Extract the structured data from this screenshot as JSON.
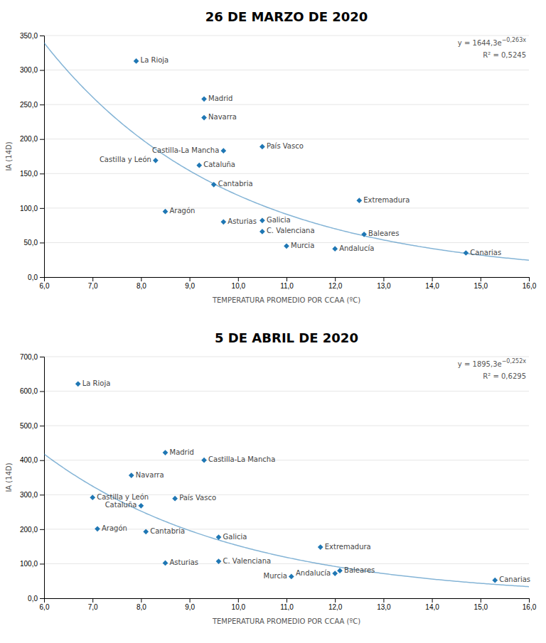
{
  "chart_data": [
    {
      "type": "scatter",
      "title": "26 DE MARZO DE 2020",
      "x_label": "TEMPERATURA  PROMEDIO POR CCAA (ºC)",
      "y_label": "IA (14D)",
      "labels": [
        "La Rioja",
        "Madrid",
        "Navarra",
        "País Vasco",
        "Castilla-La Mancha",
        "Castilla y León",
        "Cataluña",
        "Cantabria",
        "Extremadura",
        "Aragón",
        "Asturias",
        "Galicia",
        "C. Valenciana",
        "Baleares",
        "Murcia",
        "Andalucía",
        "Canarias"
      ],
      "x": [
        7.9,
        9.3,
        9.3,
        10.5,
        9.7,
        8.3,
        9.2,
        9.5,
        12.5,
        8.5,
        9.7,
        10.5,
        10.5,
        12.6,
        11.0,
        12.0,
        14.7
      ],
      "values": [
        313.0,
        258.0,
        231.0,
        189.0,
        183.0,
        169.0,
        162.0,
        134.0,
        111.0,
        95.0,
        80.0,
        82.0,
        66.0,
        62.0,
        45.0,
        41.0,
        35.0
      ],
      "marker": "diamond",
      "trend": {
        "a": 1644.3,
        "b": -0.263
      },
      "annotations": [
        {
          "text": "y = 1644,3e",
          "superscript": "−0,263x"
        },
        {
          "text": "R² = 0,5245"
        }
      ],
      "xlim": [
        6.0,
        16.0
      ],
      "ylim": [
        0.0,
        350.0
      ],
      "xticks": [
        {
          "value": 6,
          "label": "6,0"
        },
        {
          "value": 7,
          "label": "7,0"
        },
        {
          "value": 8,
          "label": "8,0"
        },
        {
          "value": 9,
          "label": "9,0"
        },
        {
          "value": 10,
          "label": "10,0"
        },
        {
          "value": 11,
          "label": "11,0"
        },
        {
          "value": 12,
          "label": "12,0"
        },
        {
          "value": 13,
          "label": "13,0"
        },
        {
          "value": 14,
          "label": "14,0"
        },
        {
          "value": 15,
          "label": "15,0"
        },
        {
          "value": 16,
          "label": "16,0"
        }
      ],
      "yticks": [
        {
          "value": 0,
          "label": "0,0"
        },
        {
          "value": 50,
          "label": "50,0"
        },
        {
          "value": 100,
          "label": "100,0"
        },
        {
          "value": 150,
          "label": "150,0"
        },
        {
          "value": 200,
          "label": "200,0"
        },
        {
          "value": 250,
          "label": "250,0"
        },
        {
          "value": 300,
          "label": "300,0"
        },
        {
          "value": 350,
          "label": "350,0"
        }
      ],
      "grid": true
    },
    {
      "type": "scatter",
      "title": "5 DE ABRIL DE 2020",
      "x_label": "TEMPERATURA  PROMEDIO POR CCAA (ºC)",
      "y_label": "IA (14D)",
      "labels": [
        "La Rioja",
        "Madrid",
        "Castilla-La Mancha",
        "Navarra",
        "Castilla y León",
        "País Vasco",
        "Cataluña",
        "Aragón",
        "Cantabria",
        "Galicia",
        "Extremadura",
        "Asturias",
        "C. Valenciana",
        "Baleares",
        "Andalucía",
        "Murcia",
        "Canarias"
      ],
      "x": [
        6.7,
        8.5,
        9.3,
        7.8,
        7.0,
        8.7,
        8.0,
        7.1,
        8.1,
        9.6,
        11.7,
        8.5,
        9.6,
        12.1,
        12.0,
        11.1,
        15.3
      ],
      "values": [
        621.0,
        422.0,
        400.0,
        356.0,
        292.0,
        289.0,
        268.0,
        201.0,
        193.0,
        177.0,
        148.0,
        102.0,
        107.0,
        80.0,
        72.0,
        63.0,
        52.0
      ],
      "marker": "diamond",
      "trend": {
        "a": 1895.3,
        "b": -0.252
      },
      "annotations": [
        {
          "text": "y = 1895,3e",
          "superscript": "−0,252x"
        },
        {
          "text": "R² = 0,6295"
        }
      ],
      "xlim": [
        6.0,
        16.0
      ],
      "ylim": [
        0.0,
        700.0
      ],
      "xticks": [
        {
          "value": 6,
          "label": "6,0"
        },
        {
          "value": 7,
          "label": "7,0"
        },
        {
          "value": 8,
          "label": "8,0"
        },
        {
          "value": 9,
          "label": "9,0"
        },
        {
          "value": 10,
          "label": "10,0"
        },
        {
          "value": 11,
          "label": "11,0"
        },
        {
          "value": 12,
          "label": "12,0"
        },
        {
          "value": 13,
          "label": "13,0"
        },
        {
          "value": 14,
          "label": "14,0"
        },
        {
          "value": 15,
          "label": "15,0"
        },
        {
          "value": 16,
          "label": "16,0"
        }
      ],
      "yticks": [
        {
          "value": 0,
          "label": "0,0"
        },
        {
          "value": 100,
          "label": "100,0"
        },
        {
          "value": 200,
          "label": "200,0"
        },
        {
          "value": 300,
          "label": "300,0"
        },
        {
          "value": 400,
          "label": "400,0"
        },
        {
          "value": 500,
          "label": "500,0"
        },
        {
          "value": 600,
          "label": "600,0"
        },
        {
          "value": 700,
          "label": "700,0"
        }
      ],
      "grid": true
    }
  ]
}
